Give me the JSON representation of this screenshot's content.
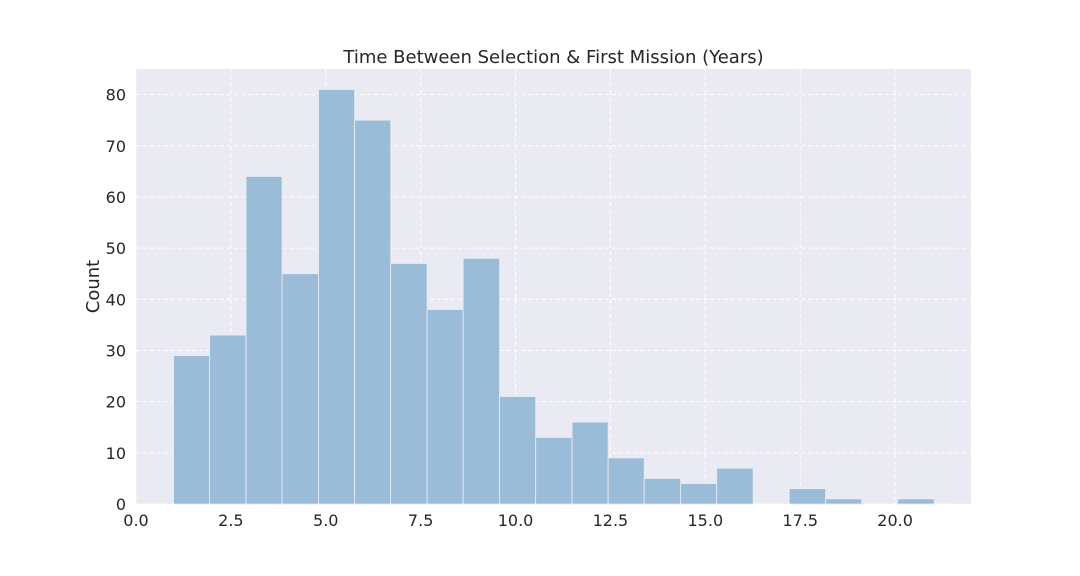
{
  "chart_data": {
    "type": "bar",
    "title": "Time Between Selection & First Mission (Years)",
    "xlabel": "",
    "ylabel": "Count",
    "xlim": [
      0,
      22
    ],
    "ylim": [
      0,
      85
    ],
    "x_ticks": [
      0.0,
      2.5,
      5.0,
      7.5,
      10.0,
      12.5,
      15.0,
      17.5,
      20.0
    ],
    "x_tick_labels": [
      "0.0",
      "2.5",
      "5.0",
      "7.5",
      "10.0",
      "12.5",
      "15.0",
      "17.5",
      "20.0"
    ],
    "y_ticks": [
      0,
      10,
      20,
      30,
      40,
      50,
      60,
      70,
      80
    ],
    "y_tick_labels": [
      "0",
      "10",
      "20",
      "30",
      "40",
      "50",
      "60",
      "70",
      "80"
    ],
    "grid": true,
    "bin_edges": [
      0.99,
      1.94,
      2.9,
      3.85,
      4.81,
      5.76,
      6.71,
      7.67,
      8.62,
      9.58,
      10.53,
      11.49,
      12.44,
      13.39,
      14.35,
      15.3,
      16.26,
      17.21,
      18.17,
      19.12,
      20.07,
      21.03
    ],
    "values": [
      29,
      33,
      64,
      45,
      81,
      75,
      47,
      38,
      48,
      21,
      13,
      16,
      9,
      5,
      4,
      7,
      0,
      3,
      1,
      0,
      1
    ],
    "colors": {
      "bar_fill": "#9bbcd9",
      "bar_edge": "#eaeaf2",
      "plot_bg": "#eaeaf2",
      "grid": "#ffffff"
    }
  }
}
